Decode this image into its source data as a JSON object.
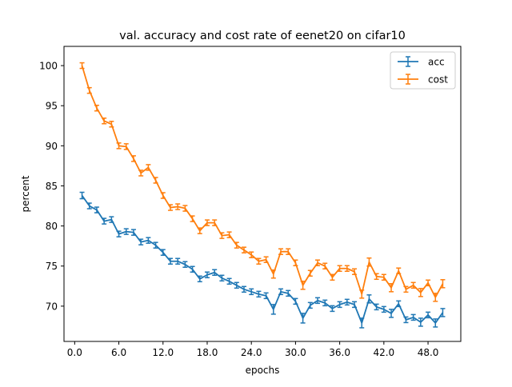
{
  "chart_data": {
    "type": "line",
    "title": "val. accuracy and cost rate of eenet20 on cifar10",
    "xlabel": "epochs",
    "ylabel": "percent",
    "xlim": [
      -1.45,
      52.45
    ],
    "ylim": [
      65.6,
      102.4
    ],
    "xticks": [
      0,
      6,
      12,
      18,
      24,
      30,
      36,
      42,
      48
    ],
    "xtick_labels": [
      "0.0",
      "6.0",
      "12.0",
      "18.0",
      "24.0",
      "30.0",
      "36.0",
      "42.0",
      "48.0"
    ],
    "yticks": [
      70,
      75,
      80,
      85,
      90,
      95,
      100
    ],
    "ytick_labels": [
      "70",
      "75",
      "80",
      "85",
      "90",
      "95",
      "100"
    ],
    "grid": false,
    "legend_position": "top-right",
    "error_bars": true,
    "x": [
      1,
      2,
      3,
      4,
      5,
      6,
      7,
      8,
      9,
      10,
      11,
      12,
      13,
      14,
      15,
      16,
      17,
      18,
      19,
      20,
      21,
      22,
      23,
      24,
      25,
      26,
      27,
      28,
      29,
      30,
      31,
      32,
      33,
      34,
      35,
      36,
      37,
      38,
      39,
      40,
      41,
      42,
      43,
      44,
      45,
      46,
      47,
      48,
      49,
      50
    ],
    "series": [
      {
        "name": "acc",
        "color": "#1f77b4",
        "values": [
          83.8,
          82.5,
          82.0,
          80.6,
          80.8,
          79.0,
          79.3,
          79.2,
          78.0,
          78.2,
          77.6,
          76.7,
          75.6,
          75.6,
          75.2,
          74.6,
          73.4,
          73.9,
          74.2,
          73.5,
          73.1,
          72.6,
          72.1,
          71.8,
          71.5,
          71.3,
          69.6,
          71.8,
          71.6,
          70.6,
          68.5,
          70.1,
          70.7,
          70.4,
          69.7,
          70.2,
          70.5,
          70.2,
          67.9,
          70.9,
          69.9,
          69.6,
          69.1,
          70.3,
          68.3,
          68.6,
          68.0,
          68.9,
          67.9,
          69.2
        ],
        "errors": [
          0.4,
          0.35,
          0.35,
          0.35,
          0.35,
          0.35,
          0.35,
          0.35,
          0.35,
          0.35,
          0.35,
          0.35,
          0.35,
          0.35,
          0.35,
          0.35,
          0.35,
          0.35,
          0.35,
          0.35,
          0.35,
          0.35,
          0.35,
          0.35,
          0.35,
          0.35,
          0.6,
          0.35,
          0.35,
          0.35,
          0.6,
          0.35,
          0.35,
          0.35,
          0.35,
          0.35,
          0.35,
          0.35,
          0.6,
          0.5,
          0.35,
          0.35,
          0.5,
          0.35,
          0.35,
          0.35,
          0.5,
          0.35,
          0.5,
          0.5
        ]
      },
      {
        "name": "cost",
        "color": "#ff7f0e",
        "values": [
          100.0,
          96.9,
          94.7,
          93.1,
          92.7,
          90.0,
          89.9,
          88.4,
          86.6,
          87.3,
          85.7,
          83.8,
          82.3,
          82.4,
          82.2,
          80.9,
          79.4,
          80.4,
          80.4,
          78.8,
          78.9,
          77.6,
          77.0,
          76.4,
          75.6,
          75.8,
          74.0,
          76.8,
          76.8,
          75.4,
          72.6,
          74.1,
          75.4,
          75.0,
          73.6,
          74.7,
          74.7,
          74.3,
          71.5,
          75.5,
          73.7,
          73.6,
          72.3,
          74.4,
          72.1,
          72.6,
          71.7,
          72.9,
          71.1,
          72.8
        ],
        "errors": [
          0.35,
          0.35,
          0.35,
          0.35,
          0.35,
          0.35,
          0.35,
          0.35,
          0.35,
          0.35,
          0.35,
          0.35,
          0.35,
          0.35,
          0.35,
          0.35,
          0.35,
          0.35,
          0.35,
          0.35,
          0.35,
          0.35,
          0.35,
          0.35,
          0.35,
          0.35,
          0.5,
          0.35,
          0.35,
          0.35,
          0.5,
          0.35,
          0.35,
          0.35,
          0.35,
          0.35,
          0.35,
          0.35,
          0.5,
          0.5,
          0.35,
          0.35,
          0.5,
          0.35,
          0.35,
          0.35,
          0.5,
          0.35,
          0.5,
          0.5
        ]
      }
    ]
  }
}
